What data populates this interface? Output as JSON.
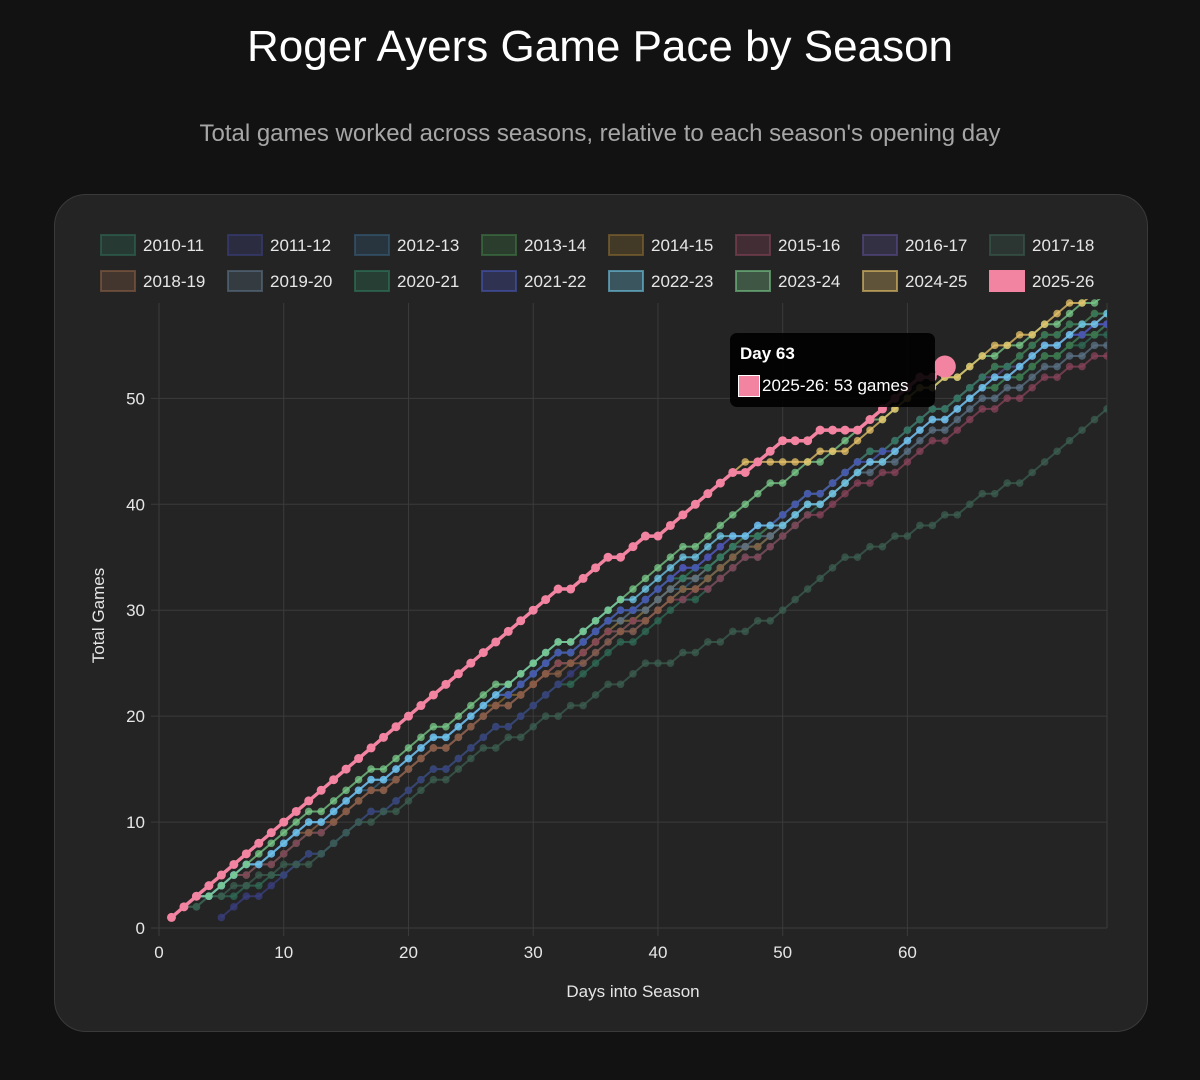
{
  "title": "Roger Ayers Game Pace by Season",
  "subtitle": "Total games worked across seasons, relative to each season's opening day",
  "tooltip": {
    "title": "Day 63",
    "body": "2025-26: 53 games",
    "color": "#f284a2"
  },
  "chart_data": {
    "type": "line",
    "xlabel": "Days into Season",
    "ylabel": "Total Games",
    "xlim": [
      0,
      76
    ],
    "ylim": [
      0,
      59
    ],
    "xticks": [
      0,
      10,
      20,
      30,
      40,
      50,
      60
    ],
    "yticks": [
      0,
      10,
      20,
      30,
      40,
      50
    ],
    "grid": true,
    "legend_position": "top",
    "highlight": {
      "series": "2025-26",
      "x": 63,
      "y": 53
    },
    "series": [
      {
        "name": "2010-11",
        "color": "#2f6b55",
        "highlight": false,
        "points": [
          [
            1,
            1
          ],
          [
            5,
            3
          ],
          [
            10,
            5
          ],
          [
            15,
            9
          ],
          [
            20,
            13
          ],
          [
            25,
            17
          ],
          [
            30,
            21
          ],
          [
            35,
            25
          ],
          [
            40,
            29
          ],
          [
            45,
            33
          ],
          [
            50,
            37
          ],
          [
            55,
            42
          ],
          [
            60,
            46
          ],
          [
            65,
            50
          ],
          [
            70,
            53
          ],
          [
            76,
            56
          ]
        ]
      },
      {
        "name": "2011-12",
        "color": "#3a3f80",
        "highlight": false,
        "points": [
          [
            5,
            1
          ],
          [
            10,
            5
          ],
          [
            15,
            9
          ],
          [
            20,
            13
          ],
          [
            25,
            17
          ],
          [
            30,
            21
          ],
          [
            35,
            26
          ],
          [
            40,
            30
          ],
          [
            45,
            34
          ],
          [
            50,
            38
          ],
          [
            55,
            42
          ],
          [
            60,
            46
          ],
          [
            65,
            50
          ],
          [
            70,
            54
          ],
          [
            76,
            57
          ]
        ]
      },
      {
        "name": "2012-13",
        "color": "#355e7a",
        "highlight": false,
        "points": [
          [
            1,
            1
          ],
          [
            5,
            4
          ],
          [
            10,
            8
          ],
          [
            15,
            12
          ],
          [
            20,
            15
          ],
          [
            25,
            19
          ],
          [
            30,
            23
          ],
          [
            35,
            27
          ],
          [
            40,
            31
          ],
          [
            45,
            34
          ],
          [
            50,
            38
          ],
          [
            55,
            42
          ],
          [
            60,
            46
          ],
          [
            65,
            50
          ],
          [
            70,
            53
          ],
          [
            76,
            57
          ]
        ]
      },
      {
        "name": "2013-14",
        "color": "#3d7a45",
        "highlight": false,
        "points": [
          [
            1,
            1
          ],
          [
            5,
            4
          ],
          [
            10,
            7
          ],
          [
            15,
            11
          ],
          [
            20,
            15
          ],
          [
            25,
            19
          ],
          [
            30,
            23
          ],
          [
            35,
            27
          ],
          [
            40,
            30
          ],
          [
            45,
            34
          ],
          [
            50,
            38
          ],
          [
            55,
            42
          ],
          [
            60,
            46
          ],
          [
            65,
            50
          ],
          [
            70,
            53
          ],
          [
            76,
            57
          ]
        ]
      },
      {
        "name": "2014-15",
        "color": "#8a6a2e",
        "highlight": false,
        "points": [
          [
            1,
            1
          ],
          [
            5,
            4
          ],
          [
            10,
            8
          ],
          [
            15,
            12
          ],
          [
            20,
            16
          ],
          [
            25,
            20
          ],
          [
            30,
            23
          ],
          [
            35,
            27
          ],
          [
            40,
            31
          ],
          [
            45,
            35
          ],
          [
            50,
            39
          ],
          [
            55,
            43
          ],
          [
            60,
            47
          ],
          [
            65,
            51
          ],
          [
            70,
            55
          ],
          [
            76,
            58
          ]
        ]
      },
      {
        "name": "2015-16",
        "color": "#874359",
        "highlight": false,
        "points": [
          [
            1,
            1
          ],
          [
            5,
            4
          ],
          [
            10,
            7
          ],
          [
            15,
            11
          ],
          [
            20,
            15
          ],
          [
            25,
            19
          ],
          [
            30,
            23
          ],
          [
            35,
            27
          ],
          [
            40,
            30
          ],
          [
            45,
            33
          ],
          [
            50,
            37
          ],
          [
            55,
            41
          ],
          [
            60,
            44
          ],
          [
            65,
            48
          ],
          [
            70,
            51
          ],
          [
            76,
            54
          ]
        ]
      },
      {
        "name": "2016-17",
        "color": "#5a4d8e",
        "highlight": false,
        "points": [
          [
            1,
            1
          ],
          [
            5,
            4
          ],
          [
            10,
            8
          ],
          [
            15,
            12
          ],
          [
            20,
            16
          ],
          [
            25,
            20
          ],
          [
            30,
            24
          ],
          [
            35,
            28
          ],
          [
            40,
            32
          ],
          [
            45,
            36
          ],
          [
            50,
            39
          ],
          [
            55,
            43
          ],
          [
            60,
            47
          ],
          [
            65,
            51
          ],
          [
            70,
            54
          ],
          [
            76,
            57
          ]
        ]
      },
      {
        "name": "2017-18",
        "color": "#3b5e50",
        "highlight": false,
        "points": [
          [
            1,
            1
          ],
          [
            5,
            3
          ],
          [
            10,
            6
          ],
          [
            12,
            6
          ],
          [
            15,
            9
          ],
          [
            20,
            12
          ],
          [
            25,
            16
          ],
          [
            30,
            19
          ],
          [
            35,
            22
          ],
          [
            38,
            24
          ],
          [
            40,
            25
          ],
          [
            45,
            27
          ],
          [
            50,
            30
          ],
          [
            55,
            35
          ],
          [
            60,
            37
          ],
          [
            65,
            40
          ],
          [
            70,
            43
          ],
          [
            76,
            49
          ]
        ]
      },
      {
        "name": "2018-19",
        "color": "#8a5f45",
        "highlight": false,
        "points": [
          [
            1,
            1
          ],
          [
            5,
            4
          ],
          [
            10,
            8
          ],
          [
            15,
            11
          ],
          [
            20,
            15
          ],
          [
            25,
            19
          ],
          [
            30,
            23
          ],
          [
            35,
            26
          ],
          [
            40,
            30
          ],
          [
            45,
            34
          ],
          [
            50,
            38
          ],
          [
            55,
            42
          ],
          [
            60,
            46
          ],
          [
            65,
            50
          ],
          [
            70,
            54
          ],
          [
            76,
            58
          ]
        ]
      },
      {
        "name": "2019-20",
        "color": "#5b7286",
        "highlight": false,
        "points": [
          [
            1,
            1
          ],
          [
            5,
            4
          ],
          [
            10,
            8
          ],
          [
            15,
            12
          ],
          [
            20,
            16
          ],
          [
            25,
            20
          ],
          [
            30,
            24
          ],
          [
            35,
            28
          ],
          [
            40,
            31
          ],
          [
            45,
            35
          ],
          [
            50,
            38
          ],
          [
            55,
            42
          ],
          [
            60,
            45
          ],
          [
            65,
            49
          ],
          [
            70,
            52
          ],
          [
            76,
            55
          ]
        ]
      },
      {
        "name": "2020-21",
        "color": "#2e7a5e",
        "highlight": false,
        "points": [
          [
            1,
            1
          ],
          [
            5,
            4
          ],
          [
            10,
            8
          ],
          [
            15,
            12
          ],
          [
            20,
            16
          ],
          [
            25,
            20
          ],
          [
            30,
            24
          ],
          [
            35,
            28
          ],
          [
            40,
            32
          ],
          [
            45,
            35
          ],
          [
            50,
            39
          ],
          [
            55,
            43
          ],
          [
            60,
            47
          ],
          [
            65,
            51
          ],
          [
            70,
            55
          ],
          [
            76,
            58
          ]
        ]
      },
      {
        "name": "2021-22",
        "color": "#4a56b8",
        "highlight": false,
        "points": [
          [
            1,
            1
          ],
          [
            5,
            4
          ],
          [
            10,
            8
          ],
          [
            15,
            12
          ],
          [
            20,
            16
          ],
          [
            25,
            20
          ],
          [
            30,
            24
          ],
          [
            35,
            28
          ],
          [
            40,
            32
          ],
          [
            45,
            36
          ],
          [
            50,
            39
          ],
          [
            55,
            43
          ],
          [
            60,
            46
          ],
          [
            65,
            50
          ],
          [
            70,
            54
          ],
          [
            76,
            57
          ]
        ]
      },
      {
        "name": "2022-23",
        "color": "#6fc8e8",
        "highlight": false,
        "points": [
          [
            1,
            1
          ],
          [
            5,
            4
          ],
          [
            10,
            8
          ],
          [
            15,
            12
          ],
          [
            20,
            16
          ],
          [
            25,
            20
          ],
          [
            30,
            25
          ],
          [
            35,
            29
          ],
          [
            40,
            33
          ],
          [
            45,
            37
          ],
          [
            50,
            38
          ],
          [
            55,
            42
          ],
          [
            60,
            46
          ],
          [
            65,
            50
          ],
          [
            70,
            54
          ],
          [
            76,
            58
          ]
        ]
      },
      {
        "name": "2023-24",
        "color": "#7ac98a",
        "highlight": false,
        "points": [
          [
            1,
            1
          ],
          [
            5,
            4
          ],
          [
            10,
            9
          ],
          [
            15,
            13
          ],
          [
            20,
            17
          ],
          [
            25,
            21
          ],
          [
            30,
            25
          ],
          [
            35,
            29
          ],
          [
            40,
            34
          ],
          [
            45,
            38
          ],
          [
            48,
            41
          ],
          [
            50,
            42
          ],
          [
            55,
            46
          ],
          [
            60,
            50
          ],
          [
            65,
            53
          ],
          [
            70,
            56
          ],
          [
            76,
            60
          ]
        ]
      },
      {
        "name": "2024-25",
        "color": "#e8c36a",
        "highlight": false,
        "points": [
          [
            1,
            1
          ],
          [
            5,
            5
          ],
          [
            10,
            10
          ],
          [
            15,
            15
          ],
          [
            20,
            20
          ],
          [
            25,
            25
          ],
          [
            30,
            30
          ],
          [
            35,
            34
          ],
          [
            38,
            36
          ],
          [
            40,
            37
          ],
          [
            45,
            42
          ],
          [
            47,
            44
          ],
          [
            50,
            44
          ],
          [
            55,
            45
          ],
          [
            60,
            50
          ],
          [
            65,
            53
          ],
          [
            67,
            55
          ],
          [
            70,
            56
          ],
          [
            76,
            61
          ]
        ]
      },
      {
        "name": "2025-26",
        "color": "#f284a2",
        "highlight": true,
        "points": [
          [
            1,
            1
          ],
          [
            5,
            5
          ],
          [
            10,
            10
          ],
          [
            15,
            15
          ],
          [
            20,
            20
          ],
          [
            25,
            25
          ],
          [
            30,
            30
          ],
          [
            35,
            34
          ],
          [
            38,
            36
          ],
          [
            40,
            37
          ],
          [
            45,
            42
          ],
          [
            47,
            43
          ],
          [
            50,
            46
          ],
          [
            56,
            47
          ],
          [
            60,
            51
          ],
          [
            63,
            53
          ]
        ]
      }
    ]
  }
}
